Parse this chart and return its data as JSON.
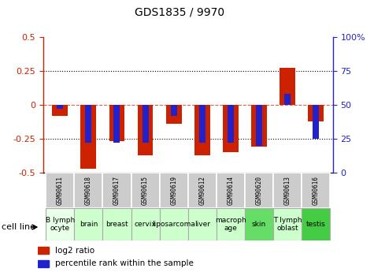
{
  "title": "GDS1835 / 9970",
  "samples": [
    "GSM90611",
    "GSM90618",
    "GSM90617",
    "GSM90615",
    "GSM90619",
    "GSM90612",
    "GSM90614",
    "GSM90620",
    "GSM90613",
    "GSM90616"
  ],
  "cell_lines": [
    "B lymph\nocyte",
    "brain",
    "breast",
    "cervix",
    "liposarcoma\n",
    "liver",
    "macroph\nage",
    "skin",
    "T lymph\noblast",
    "testis"
  ],
  "cell_line_colors": [
    "#e8ffe8",
    "#ccffcc",
    "#ccffcc",
    "#ccffcc",
    "#ccffcc",
    "#ccffcc",
    "#ccffcc",
    "#66dd66",
    "#ccffcc",
    "#44cc44"
  ],
  "log2_ratio": [
    -0.08,
    -0.47,
    -0.27,
    -0.37,
    -0.14,
    -0.37,
    -0.35,
    -0.31,
    0.27,
    -0.12
  ],
  "percentile_rank": [
    47,
    22,
    22,
    22,
    42,
    22,
    22,
    20,
    58,
    25
  ],
  "ylim": [
    -0.5,
    0.5
  ],
  "yticks_left": [
    -0.5,
    -0.25,
    0,
    0.25,
    0.5
  ],
  "bar_color_red": "#cc2200",
  "bar_color_blue": "#2222cc",
  "plot_bg": "#ffffff",
  "bar_width": 0.55,
  "blue_bar_width": 0.22,
  "legend_red": "log2 ratio",
  "legend_blue": "percentile rank within the sample",
  "cell_line_label": "cell line"
}
